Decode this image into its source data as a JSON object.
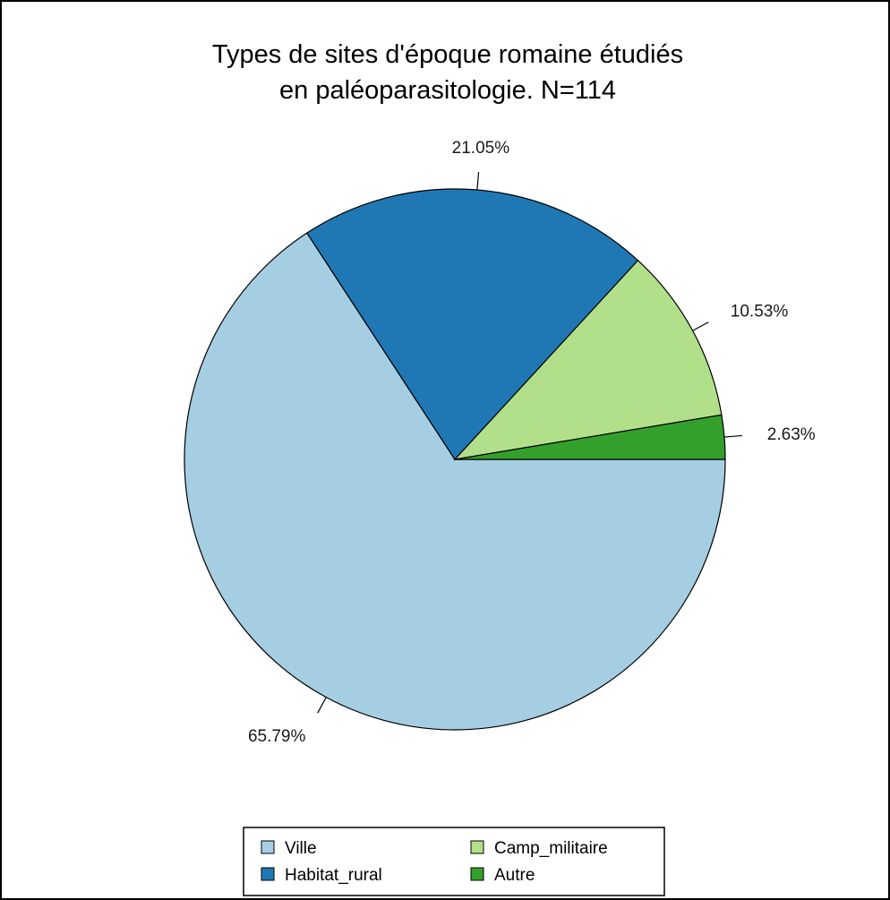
{
  "chart_data": {
    "type": "pie",
    "title_lines": [
      "Types de sites d'époque romaine étudiés",
      "en paléoparasitologie. N=114"
    ],
    "start_angle_deg": 0,
    "direction": "clockwise",
    "slices": [
      {
        "name": "Ville",
        "value": 65.79,
        "label": "65.79%",
        "color": "#a6cee3"
      },
      {
        "name": "Habitat_rural",
        "value": 21.05,
        "label": "21.05%",
        "color": "#1f78b4"
      },
      {
        "name": "Camp_militaire",
        "value": 10.53,
        "label": "10.53%",
        "color": "#b2df8a"
      },
      {
        "name": "Autre",
        "value": 2.63,
        "label": "2.63%",
        "color": "#33a02c"
      }
    ],
    "legend": {
      "placement": "bottom",
      "columns": 2,
      "order": [
        "Ville",
        "Camp_militaire",
        "Habitat_rural",
        "Autre"
      ]
    }
  }
}
